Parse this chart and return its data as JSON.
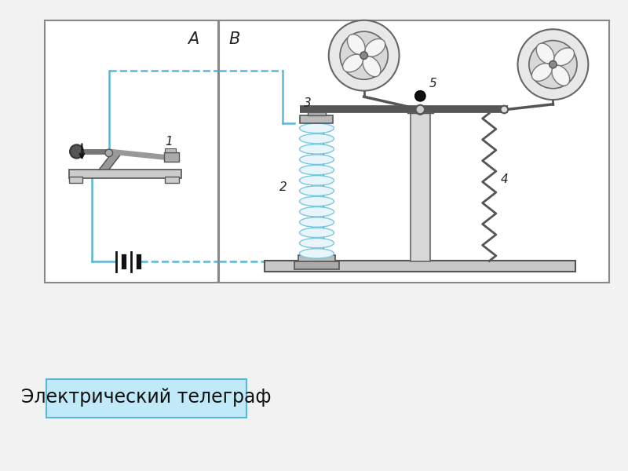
{
  "title": "Электрический телеграф",
  "label_A": "A",
  "label_B": "B",
  "label_1": "1",
  "label_2": "2",
  "label_3": "3",
  "label_4": "4",
  "label_5": "5",
  "circuit_color": "#5ab8d6",
  "box_edge_color": "#777777",
  "bg_color": "#f0f0f0",
  "label_box_bg": "#c0eaf8",
  "label_box_border": "#5ab8d6",
  "text_color": "#111111",
  "component_dark": "#555555",
  "component_mid": "#888888",
  "component_light": "#cccccc"
}
